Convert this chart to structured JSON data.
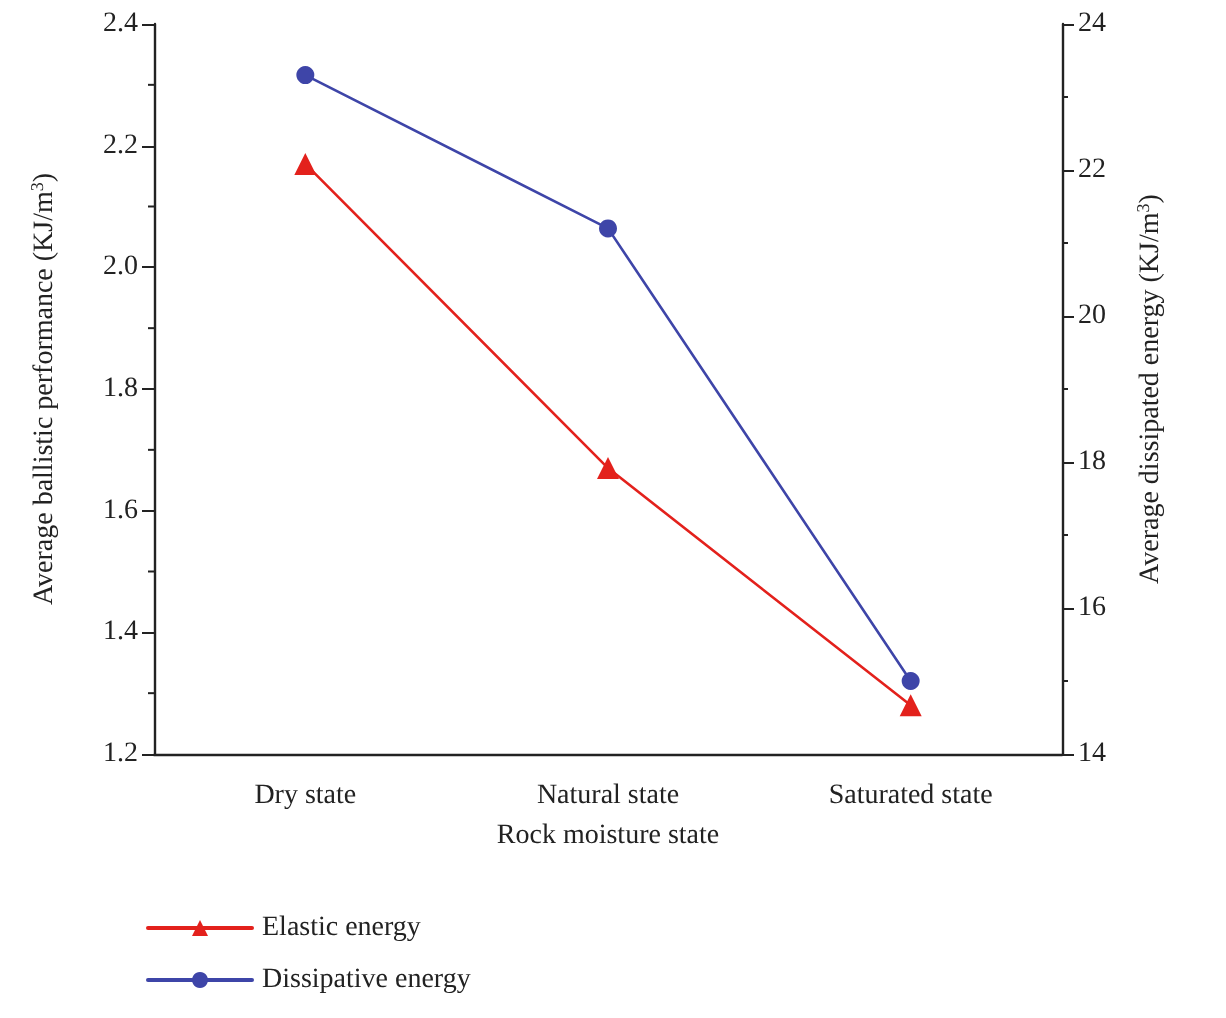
{
  "chart_data": {
    "type": "line",
    "xlabel": "Rock moisture state",
    "ylabel": "Average ballistic performance (KJ/m$^{3}$)",
    "y2label": "Average dissipated energy (KJ/m$^{3}$)",
    "categories": [
      "Dry state",
      "Natural state",
      "Saturated state"
    ],
    "series": [
      {
        "name": "Elastic energy",
        "color": "#e3211c",
        "marker": "triangle",
        "values": [
          2.17,
          1.67,
          1.28
        ]
      },
      {
        "name": "Dissipative energy",
        "color": "#3e45a8",
        "marker": "circle",
        "axis": "y2",
        "values": [
          23.3,
          21.2,
          15.0
        ]
      }
    ],
    "ylim": [
      1.2,
      2.4
    ],
    "yticks": [
      1.2,
      1.4,
      1.6,
      1.8,
      {
        "value": 2,
        "label": "2.0"
      },
      2.2,
      2.4
    ],
    "y2lim": [
      14,
      24
    ],
    "y2ticks": [
      14,
      16,
      18,
      20,
      22,
      24
    ],
    "legend": "bottom left",
    "grid": false,
    "line_style": "solid"
  }
}
